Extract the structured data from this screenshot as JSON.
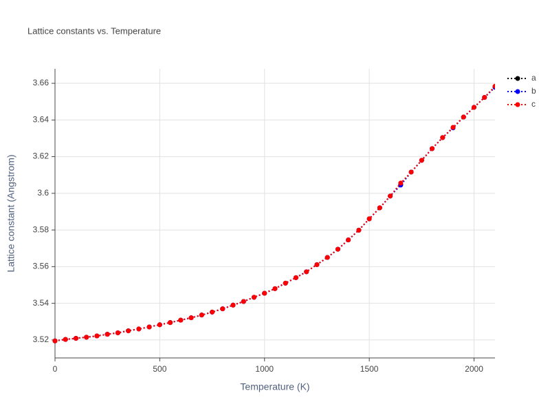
{
  "chart_data": {
    "type": "line",
    "title": "Lattice constants vs. Temperature",
    "x_label": "Temperature (K)",
    "y_label": "Lattice constant (Angstrom)",
    "x": [
      0,
      50,
      100,
      150,
      200,
      250,
      300,
      350,
      400,
      450,
      500,
      550,
      600,
      650,
      700,
      750,
      800,
      850,
      900,
      950,
      1000,
      1050,
      1100,
      1150,
      1200,
      1250,
      1300,
      1350,
      1400,
      1450,
      1500,
      1550,
      1600,
      1650,
      1700,
      1750,
      1800,
      1850,
      1900,
      1950,
      2000,
      2050,
      2100
    ],
    "series": [
      {
        "name": "a",
        "color": "#000000",
        "values": [
          3.5195,
          3.5203,
          3.5209,
          3.5215,
          3.5222,
          3.5231,
          3.5239,
          3.525,
          3.526,
          3.5271,
          3.5283,
          3.5295,
          3.5308,
          3.5321,
          3.5336,
          3.5352,
          3.537,
          3.539,
          3.541,
          3.5433,
          3.5455,
          3.548,
          3.551,
          3.554,
          3.5572,
          3.5611,
          3.565,
          3.5695,
          3.5746,
          3.5799,
          3.5861,
          3.5921,
          3.5985,
          3.6048,
          3.6116,
          3.618,
          3.6244,
          3.6304,
          3.6358,
          3.6416,
          3.6469,
          3.6523,
          3.6581
        ]
      },
      {
        "name": "b",
        "color": "#0000ff",
        "values": [
          3.5195,
          3.5203,
          3.5209,
          3.5215,
          3.5222,
          3.5231,
          3.5239,
          3.525,
          3.526,
          3.5271,
          3.5283,
          3.5295,
          3.5308,
          3.5321,
          3.5336,
          3.5352,
          3.537,
          3.539,
          3.541,
          3.5433,
          3.5455,
          3.548,
          3.551,
          3.554,
          3.5572,
          3.5611,
          3.565,
          3.5695,
          3.5746,
          3.5799,
          3.5861,
          3.5921,
          3.5985,
          3.6045,
          3.6116,
          3.618,
          3.6244,
          3.6304,
          3.6357,
          3.6416,
          3.6469,
          3.6523,
          3.6578
        ]
      },
      {
        "name": "c",
        "color": "#ff0000",
        "values": [
          3.5195,
          3.5203,
          3.5209,
          3.5215,
          3.5222,
          3.5231,
          3.5239,
          3.525,
          3.526,
          3.5271,
          3.5283,
          3.5295,
          3.5308,
          3.5321,
          3.5336,
          3.5352,
          3.537,
          3.539,
          3.541,
          3.5433,
          3.5455,
          3.548,
          3.551,
          3.554,
          3.5572,
          3.5611,
          3.565,
          3.5695,
          3.5746,
          3.5799,
          3.5861,
          3.5921,
          3.5985,
          3.6056,
          3.6116,
          3.618,
          3.6244,
          3.6304,
          3.636,
          3.6416,
          3.6469,
          3.6523,
          3.6584
        ]
      }
    ],
    "xlim": [
      0,
      2100
    ],
    "ylim": [
      3.5102,
      3.6679
    ],
    "xticks": [
      0,
      500,
      1000,
      1500,
      2000
    ],
    "yticks": [
      3.52,
      3.54,
      3.56,
      3.58,
      3.6,
      3.62,
      3.64,
      3.66
    ],
    "grid": true,
    "legend": "right"
  }
}
